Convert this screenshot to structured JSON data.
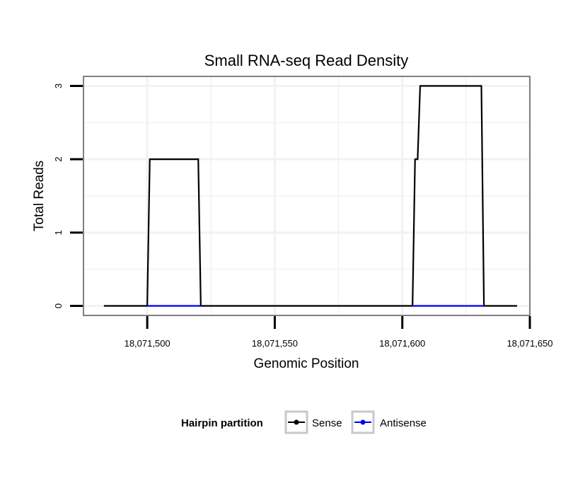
{
  "chart_data": {
    "type": "line",
    "title": "Small RNA-seq Read Density",
    "xlabel": "Genomic Position",
    "ylabel": "Total Reads",
    "xlim": [
      18071475,
      18071650
    ],
    "ylim": [
      -0.13,
      3.13
    ],
    "x_ticks": [
      18071500,
      18071550,
      18071600,
      18071650
    ],
    "x_tick_labels": [
      "18,071,500",
      "18,071,550",
      "18,071,600",
      "18,071,650"
    ],
    "y_ticks": [
      0,
      1,
      2,
      3
    ],
    "y_tick_labels": [
      "0",
      "1",
      "2",
      "3"
    ],
    "grid": true,
    "legend": {
      "title": "Hairpin partition",
      "position": "bottom",
      "entries": [
        "Sense",
        "Antisense"
      ]
    },
    "colors": {
      "Sense": "#000000",
      "Antisense": "#0000ff",
      "panel_border": "#808080",
      "grid": "#f2f2f2"
    },
    "series": [
      {
        "name": "Sense",
        "x": [
          18071483,
          18071500,
          18071501,
          18071520,
          18071521,
          18071604,
          18071605,
          18071606,
          18071607,
          18071631,
          18071632,
          18071645
        ],
        "y": [
          0,
          0,
          2,
          2,
          0,
          0,
          2,
          2,
          3,
          3,
          0,
          0
        ]
      },
      {
        "name": "Antisense",
        "x": [
          18071500,
          18071521,
          18071604,
          18071632
        ],
        "y": [
          0,
          0,
          0,
          0
        ],
        "segments": [
          [
            0,
            1
          ],
          [
            2,
            3
          ]
        ]
      }
    ]
  }
}
